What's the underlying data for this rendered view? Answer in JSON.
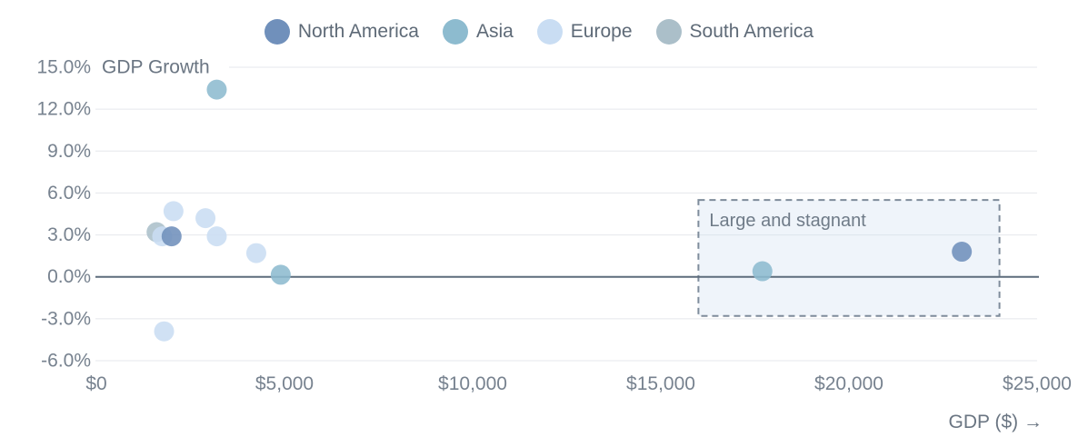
{
  "chart_data": {
    "type": "scatter",
    "title": "",
    "ylabel": "GDP Growth",
    "xlabel": "GDP ($) →",
    "xlim": [
      0,
      25000
    ],
    "ylim": [
      -6,
      15
    ],
    "grid": "horizontal",
    "legend_position": "top-center",
    "x_ticks": [
      {
        "value": 0,
        "label": "$0"
      },
      {
        "value": 5000,
        "label": "$5,000"
      },
      {
        "value": 10000,
        "label": "$10,000"
      },
      {
        "value": 15000,
        "label": "$15,000"
      },
      {
        "value": 20000,
        "label": "$20,000"
      },
      {
        "value": 25000,
        "label": "$25,000"
      }
    ],
    "y_ticks": [
      {
        "value": 15,
        "label": "15.0%"
      },
      {
        "value": 12,
        "label": "12.0%"
      },
      {
        "value": 9,
        "label": "9.0%"
      },
      {
        "value": 6,
        "label": "6.0%"
      },
      {
        "value": 3,
        "label": "3.0%"
      },
      {
        "value": 0,
        "label": "0.0%"
      },
      {
        "value": -3,
        "label": "-3.0%"
      },
      {
        "value": -6,
        "label": "-6.0%"
      }
    ],
    "series": [
      {
        "name": "North America",
        "color": "#7090bb",
        "points": [
          [
            2000,
            2.9
          ],
          [
            23000,
            1.8
          ]
        ]
      },
      {
        "name": "Asia",
        "color": "#8dbbcf",
        "points": [
          [
            3200,
            13.4
          ],
          [
            4900,
            0.15
          ],
          [
            17700,
            0.4
          ]
        ]
      },
      {
        "name": "Europe",
        "color": "#c9ddf3",
        "points": [
          [
            2050,
            4.7
          ],
          [
            2900,
            4.2
          ],
          [
            1750,
            2.9
          ],
          [
            3200,
            2.9
          ],
          [
            4250,
            1.7
          ],
          [
            1800,
            -3.9
          ]
        ]
      },
      {
        "name": "South America",
        "color": "#abbfc9",
        "points": [
          [
            1600,
            3.2
          ]
        ]
      }
    ],
    "annotation": {
      "label": "Large and stagnant",
      "x_range": [
        16000,
        24000
      ],
      "y_range": [
        -2.8,
        5.5
      ]
    },
    "style_colors": {
      "gridline": "#e5e7ec",
      "zero_line": "#5d6c7c",
      "annotation_border": "#7e8c9b",
      "annotation_fill": "rgba(205,220,238,0.32)",
      "tick_text": "#77828f"
    }
  }
}
